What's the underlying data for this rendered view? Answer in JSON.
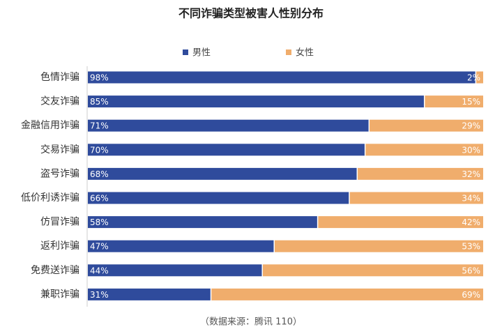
{
  "chart_data": {
    "type": "stacked-bar-horizontal",
    "title": "不同诈骗类型被害人性别分布",
    "source": "（数据来源：腾讯 110）",
    "categories": [
      "色情诈骗",
      "交友诈骗",
      "金融信用诈骗",
      "交易诈骗",
      "盗号诈骗",
      "低价利诱诈骗",
      "仿冒诈骗",
      "返利诈骗",
      "免费送诈骗",
      "兼职诈骗"
    ],
    "series": [
      {
        "name": "男性",
        "color": "#2f4b9c",
        "values": [
          98,
          85,
          71,
          70,
          68,
          66,
          58,
          47,
          44,
          31
        ],
        "value_labels": [
          "98%",
          "85%",
          "71%",
          "70%",
          "68%",
          "66%",
          "58%",
          "47%",
          "44%",
          "31%"
        ]
      },
      {
        "name": "女性",
        "color": "#f0ad6c",
        "values": [
          2,
          15,
          29,
          30,
          32,
          34,
          42,
          53,
          56,
          69
        ],
        "value_labels": [
          "2%",
          "15%",
          "29%",
          "30%",
          "32%",
          "34%",
          "42%",
          "53%",
          "56%",
          "69%"
        ]
      }
    ],
    "xlim": [
      0,
      100
    ],
    "legend": "top"
  }
}
